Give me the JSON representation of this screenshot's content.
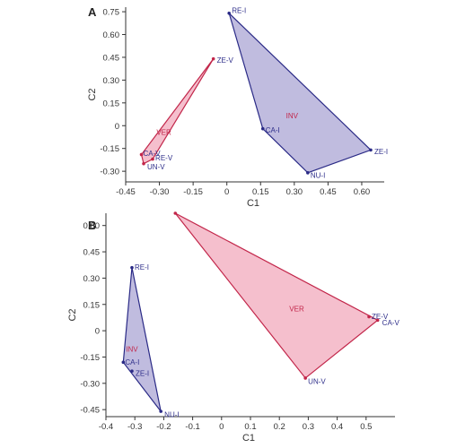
{
  "colors": {
    "ver_fill": "#f4b8c8",
    "ver_stroke": "#c2264a",
    "ver_label": "#c2264a",
    "inv_fill": "#b9b5dc",
    "inv_stroke": "#2a2a86",
    "inv_label": "#c2264a",
    "point_label": "#2e2e8a",
    "axis": "#333333"
  },
  "chart_data": [
    {
      "panel": "A",
      "type": "scatter",
      "xlabel": "C1",
      "ylabel": "C2",
      "xlim": [
        -0.45,
        0.7
      ],
      "ylim": [
        -0.37,
        0.78
      ],
      "xticks": [
        -0.45,
        -0.3,
        -0.15,
        0,
        0.15,
        0.3,
        0.45,
        0.6
      ],
      "xtick_labels": [
        "-0.45",
        "-0.30",
        "-0.15",
        "0",
        "0.15",
        "0.30",
        "0.45",
        "0.60"
      ],
      "yticks": [
        0.75,
        0.6,
        0.45,
        0.3,
        0.15,
        0,
        -0.15,
        -0.3
      ],
      "ytick_labels": [
        "0.75",
        "0.60",
        "0.45",
        "0.30",
        "0.15",
        "0",
        "-0.15",
        "-0.30"
      ],
      "series": [
        {
          "name": "VER",
          "points": [
            {
              "label": "ZE-V",
              "x": -0.06,
              "y": 0.44
            },
            {
              "label": "CA-V",
              "x": -0.38,
              "y": -0.19
            },
            {
              "label": "UN-V",
              "x": -0.37,
              "y": -0.25
            },
            {
              "label": "RE-V",
              "x": -0.33,
              "y": -0.22
            }
          ],
          "hull": [
            "ZE-V",
            "CA-V",
            "UN-V",
            "RE-V"
          ],
          "group_label_at": {
            "x": -0.28,
            "y": -0.06
          }
        },
        {
          "name": "INV",
          "points": [
            {
              "label": "RE-I",
              "x": 0.01,
              "y": 0.74
            },
            {
              "label": "CA-I",
              "x": 0.16,
              "y": -0.02
            },
            {
              "label": "NU-I",
              "x": 0.36,
              "y": -0.31
            },
            {
              "label": "ZE-I",
              "x": 0.64,
              "y": -0.16
            }
          ],
          "hull": [
            "RE-I",
            "ZE-I",
            "NU-I",
            "CA-I"
          ],
          "group_label_at": {
            "x": 0.29,
            "y": 0.05
          }
        }
      ]
    },
    {
      "panel": "B",
      "type": "scatter",
      "xlabel": "C1",
      "ylabel": "C2",
      "xlim": [
        -0.4,
        0.6
      ],
      "ylim": [
        -0.49,
        0.67
      ],
      "xticks": [
        -0.4,
        -0.3,
        -0.2,
        -0.1,
        0,
        0.1,
        0.2,
        0.3,
        0.4,
        0.5
      ],
      "xtick_labels": [
        "-0.4",
        "-0.3",
        "-0.2",
        "-0.1",
        "0",
        "0.1",
        "0.2",
        "0.3",
        "0.4",
        "0.5"
      ],
      "yticks": [
        0.6,
        0.45,
        0.3,
        0.15,
        0,
        -0.15,
        -0.3,
        -0.45
      ],
      "ytick_labels": [
        "0.60",
        "0.45",
        "0.30",
        "0.15",
        "0",
        "-0.15",
        "-0.30",
        "-0.45"
      ],
      "series": [
        {
          "name": "VER",
          "points": [
            {
              "label": "",
              "x": -0.16,
              "y": 0.67
            },
            {
              "label": "ZE-V",
              "x": 0.51,
              "y": 0.08
            },
            {
              "label": "CA-V",
              "x": 0.54,
              "y": 0.06
            },
            {
              "label": "UN-V",
              "x": 0.29,
              "y": -0.27
            }
          ],
          "hull": [
            "",
            "CA-V",
            "UN-V"
          ],
          "group_label_at": {
            "x": 0.26,
            "y": 0.11
          }
        },
        {
          "name": "INV",
          "points": [
            {
              "label": "RE-I",
              "x": -0.31,
              "y": 0.36
            },
            {
              "label": "CA-I",
              "x": -0.34,
              "y": -0.18
            },
            {
              "label": "ZE-I",
              "x": -0.31,
              "y": -0.23
            },
            {
              "label": "NU-I",
              "x": -0.21,
              "y": -0.46
            }
          ],
          "hull": [
            "RE-I",
            "NU-I",
            "CA-I"
          ],
          "group_label_at": {
            "x": -0.31,
            "y": -0.12
          }
        }
      ]
    }
  ]
}
